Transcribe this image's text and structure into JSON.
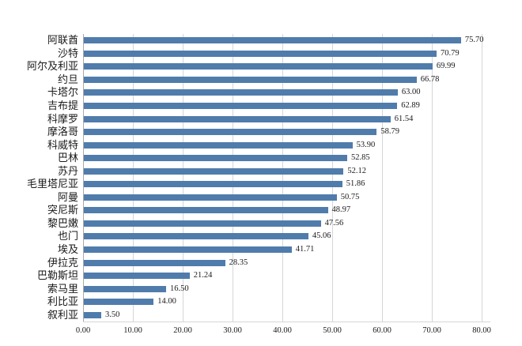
{
  "chart_data": {
    "type": "bar",
    "orientation": "horizontal",
    "title": "",
    "xlabel": "",
    "ylabel": "",
    "categories": [
      "阿联酋",
      "沙特",
      "阿尔及利亚",
      "约旦",
      "卡塔尔",
      "吉布提",
      "科摩罗",
      "摩洛哥",
      "科威特",
      "巴林",
      "苏丹",
      "毛里塔尼亚",
      "阿曼",
      "突尼斯",
      "黎巴嫩",
      "也门",
      "埃及",
      "伊拉克",
      "巴勒斯坦",
      "索马里",
      "利比亚",
      "叙利亚"
    ],
    "values": [
      75.7,
      70.79,
      69.99,
      66.78,
      63.0,
      62.89,
      61.54,
      58.79,
      53.9,
      52.85,
      52.12,
      51.86,
      50.75,
      48.97,
      47.56,
      45.06,
      41.71,
      28.35,
      21.24,
      16.5,
      14.0,
      3.5
    ],
    "value_labels": [
      "75.70",
      "70.79",
      "69.99",
      "66.78",
      "63.00",
      "62.89",
      "61.54",
      "58.79",
      "53.90",
      "52.85",
      "52.12",
      "51.86",
      "50.75",
      "48.97",
      "47.56",
      "45.06",
      "41.71",
      "28.35",
      "21.24",
      "16.50",
      "14.00",
      "3.50"
    ],
    "xlim": [
      0,
      80
    ],
    "x_ticks": [
      0,
      10,
      20,
      30,
      40,
      50,
      60,
      70,
      80
    ],
    "x_tick_labels": [
      "0.00",
      "10.00",
      "20.00",
      "30.00",
      "40.00",
      "50.00",
      "60.00",
      "70.00",
      "80.00"
    ],
    "grid": true,
    "legend": false,
    "colors": {
      "bar": "#507CAC",
      "gridline": "#D6D6D6",
      "axis_line": "#A9A9A9",
      "text": "#1a1a1a"
    }
  }
}
